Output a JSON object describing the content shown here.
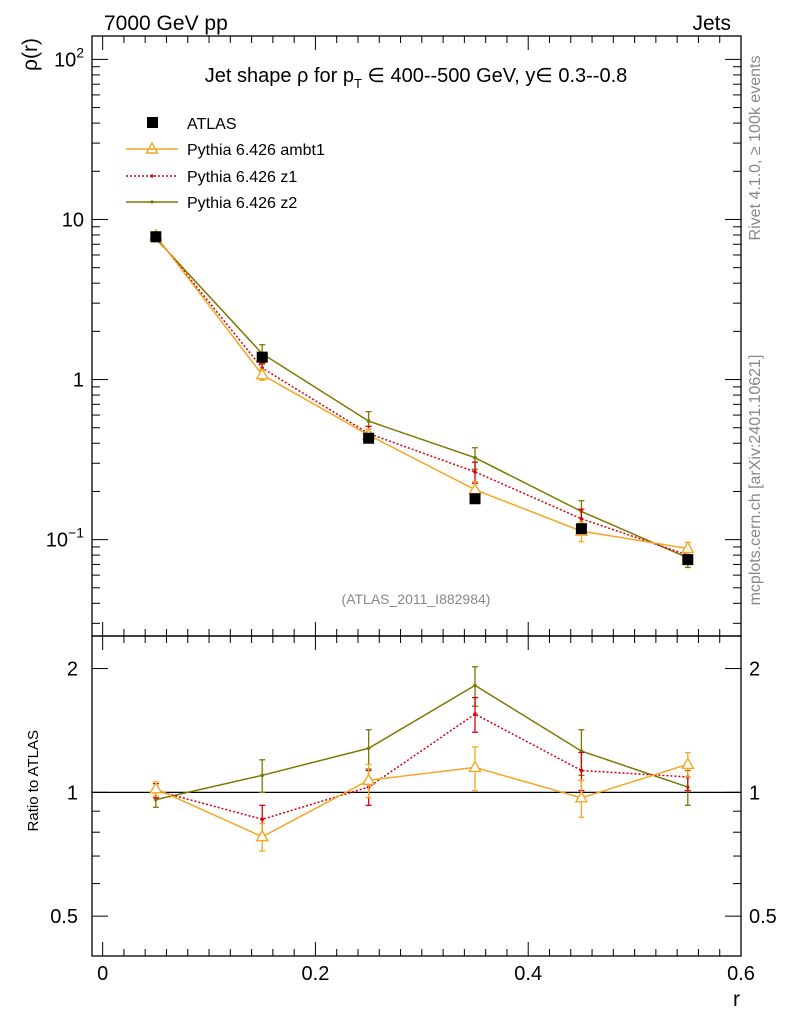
{
  "header": {
    "left": "7000 GeV pp",
    "right": "Jets"
  },
  "side_text": {
    "rivet": "Rivet 4.1.0, ≥ 100k events",
    "mcplots": "mcplots.cern.ch [arXiv:2401.10621]"
  },
  "chart_data": [
    {
      "type": "line",
      "panel": "main",
      "title": "Jet shape ρ for p_T ∈ 400--500 GeV, y∈ 0.3--0.8",
      "title_parts": {
        "a": "Jet shape ρ for p",
        "sub": "T",
        "b": " ∈ 400--500 GeV, y∈ 0.3--0.8"
      },
      "watermark": "(ATLAS_2011_I882984)",
      "ylabel": "ρ(r)",
      "yscale": "log",
      "ylim": [
        0.025,
        140
      ],
      "xlim": [
        -0.01,
        0.6
      ],
      "yticks": [
        {
          "v": 0.1,
          "base": "10",
          "exp": "−1"
        },
        {
          "v": 1,
          "base": "1",
          "exp": ""
        },
        {
          "v": 10,
          "base": "10",
          "exp": ""
        },
        {
          "v": 100,
          "base": "10",
          "exp": "2"
        }
      ],
      "legend_position": "top-left",
      "x": [
        0.05,
        0.15,
        0.25,
        0.35,
        0.45,
        0.55
      ],
      "series": [
        {
          "name": "ATLAS",
          "style": "data",
          "color": "#000000",
          "values": [
            7.8,
            1.38,
            0.43,
            0.18,
            0.117,
            0.075
          ]
        },
        {
          "name": "Pythia 6.426 ambt1",
          "style": "triangle",
          "color": "#f5a623",
          "values": [
            7.9,
            1.07,
            0.45,
            0.205,
            0.113,
            0.088
          ],
          "err": [
            0.3,
            0.08,
            0.04,
            0.025,
            0.016,
            0.008
          ]
        },
        {
          "name": "Pythia 6.426 z1",
          "style": "dotted",
          "color": "#d9000d",
          "values": [
            7.85,
            1.18,
            0.46,
            0.265,
            0.135,
            0.08
          ],
          "err": [
            0.3,
            0.09,
            0.05,
            0.04,
            0.02,
            0.008
          ]
        },
        {
          "name": "Pythia 6.426 z2",
          "style": "line",
          "color": "#7a7a00",
          "values": [
            7.6,
            1.45,
            0.55,
            0.325,
            0.15,
            0.077
          ],
          "err": [
            0.35,
            0.2,
            0.08,
            0.05,
            0.025,
            0.01
          ]
        }
      ]
    },
    {
      "type": "line",
      "panel": "ratio",
      "ylabel": "Ratio to ATLAS",
      "xlabel": "r",
      "yscale": "log",
      "ylim": [
        0.4,
        2.4
      ],
      "xlim": [
        -0.01,
        0.6
      ],
      "reference": 1,
      "yticks": [
        0.5,
        1,
        2
      ],
      "xticks": [
        0,
        0.2,
        0.4,
        0.6
      ],
      "x": [
        0.05,
        0.15,
        0.25,
        0.35,
        0.45,
        0.55
      ],
      "series": [
        {
          "name": "Pythia 6.426 ambt1",
          "style": "triangle",
          "color": "#f5a623",
          "values": [
            1.02,
            0.78,
            1.07,
            1.15,
            0.97,
            1.17
          ],
          "err": [
            0.04,
            0.06,
            0.1,
            0.14,
            0.1,
            0.08
          ]
        },
        {
          "name": "Pythia 6.426 z1",
          "style": "dotted",
          "color": "#d9000d",
          "values": [
            1.01,
            0.86,
            1.03,
            1.55,
            1.13,
            1.09
          ],
          "err": [
            0.04,
            0.07,
            0.1,
            0.15,
            0.12,
            0.08
          ]
        },
        {
          "name": "Pythia 6.426 z2",
          "style": "line",
          "color": "#7a7a00",
          "values": [
            0.96,
            1.1,
            1.28,
            1.82,
            1.26,
            1.03
          ],
          "err": [
            0.04,
            0.1,
            0.14,
            0.2,
            0.16,
            0.1
          ]
        }
      ]
    }
  ]
}
